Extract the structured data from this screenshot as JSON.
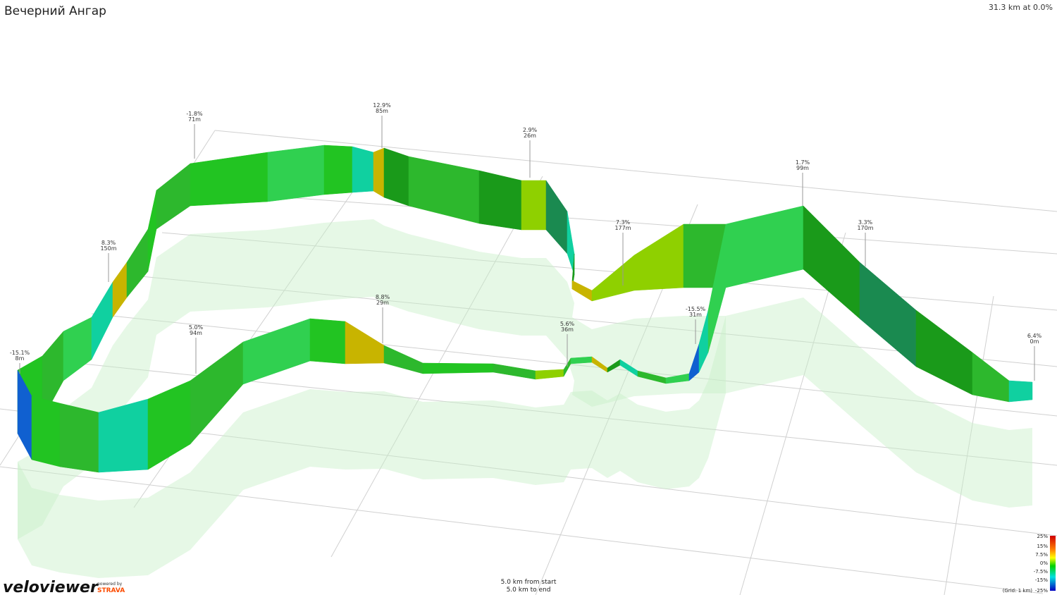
{
  "header": {
    "title": "Вечерний Ангар",
    "status": "31.3 km at 0.0%"
  },
  "markers": [
    {
      "grade": "-1.8%",
      "distance": "71m"
    },
    {
      "grade": "12.9%",
      "distance": "85m"
    },
    {
      "grade": "2.9%",
      "distance": "26m"
    },
    {
      "grade": "1.7%",
      "distance": "99m"
    },
    {
      "grade": "8.3%",
      "distance": "150m"
    },
    {
      "grade": "7.3%",
      "distance": "177m"
    },
    {
      "grade": "3.3%",
      "distance": "170m"
    },
    {
      "grade": "-15.1%",
      "distance": "8m"
    },
    {
      "grade": "5.0%",
      "distance": "94m"
    },
    {
      "grade": "8.8%",
      "distance": "29m"
    },
    {
      "grade": "5.6%",
      "distance": "36m"
    },
    {
      "grade": "-15.5%",
      "distance": "31m"
    },
    {
      "grade": "6.4%",
      "distance": "0m"
    }
  ],
  "legend": {
    "ticks": [
      "25%",
      "15%",
      "7.5%",
      "0%",
      "-7.5%",
      "-15%",
      "-25%"
    ],
    "grid": "(Grid: 1 km)"
  },
  "footer": {
    "from_start": "5.0 km from start",
    "to_end": "5.0 km to end"
  },
  "branding": {
    "logo": "veloviewer",
    "powered": "powered by",
    "strava": "STRAVA"
  }
}
